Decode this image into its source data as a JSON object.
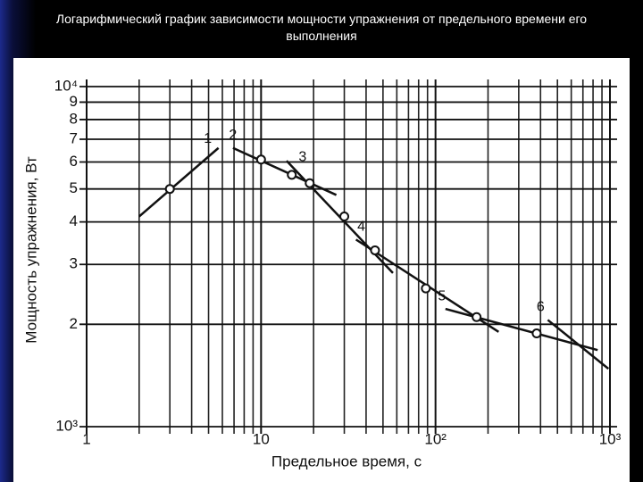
{
  "chart_data": {
    "type": "line",
    "title": "Логарифмический график зависимости мощности упражнения от предельного времени его выполнения",
    "x_label": "Предельное время, с",
    "y_label": "Мощность упражнения, Вт",
    "log_x": true,
    "log_y": true,
    "grid": true,
    "xlim": [
      1,
      1000
    ],
    "ylim": [
      1000,
      10000
    ],
    "xticks": [
      1,
      10,
      {
        "value": 100,
        "label": "10²"
      },
      {
        "value": 1000,
        "label": "10³"
      }
    ],
    "yticks": [
      {
        "value": 1000,
        "label": "10³"
      },
      {
        "value": 2000,
        "label": "2"
      },
      {
        "value": 3000,
        "label": "3"
      },
      {
        "value": 4000,
        "label": "4"
      },
      {
        "value": 5000,
        "label": "5"
      },
      {
        "value": 6000,
        "label": "6"
      },
      {
        "value": 7000,
        "label": "7"
      },
      {
        "value": 8000,
        "label": "8"
      },
      {
        "value": 9000,
        "label": "9"
      },
      {
        "value": 10000,
        "label": "10⁴"
      }
    ],
    "series": [
      {
        "name": "1",
        "color": "#111111",
        "x": [
          2,
          5.7
        ],
        "values": [
          4150,
          6600
        ]
      },
      {
        "name": "2",
        "color": "#111111",
        "x": [
          6.9,
          27
        ],
        "values": [
          6600,
          4800
        ]
      },
      {
        "name": "3",
        "color": "#111111",
        "x": [
          14,
          57
        ],
        "values": [
          6050,
          2830
        ]
      },
      {
        "name": "4",
        "color": "#111111",
        "x": [
          35,
          230
        ],
        "values": [
          3550,
          1900
        ]
      },
      {
        "name": "5",
        "color": "#111111",
        "x": [
          114,
          850
        ],
        "values": [
          2220,
          1680
        ]
      },
      {
        "name": "6",
        "color": "#111111",
        "x": [
          440,
          980
        ],
        "values": [
          2060,
          1480
        ]
      }
    ],
    "points": {
      "color": "#111111",
      "x": [
        3,
        10,
        15,
        19,
        30,
        45,
        88,
        172,
        380
      ],
      "values": [
        5000,
        6100,
        5500,
        5200,
        4150,
        3300,
        2550,
        2100,
        1880
      ]
    }
  }
}
